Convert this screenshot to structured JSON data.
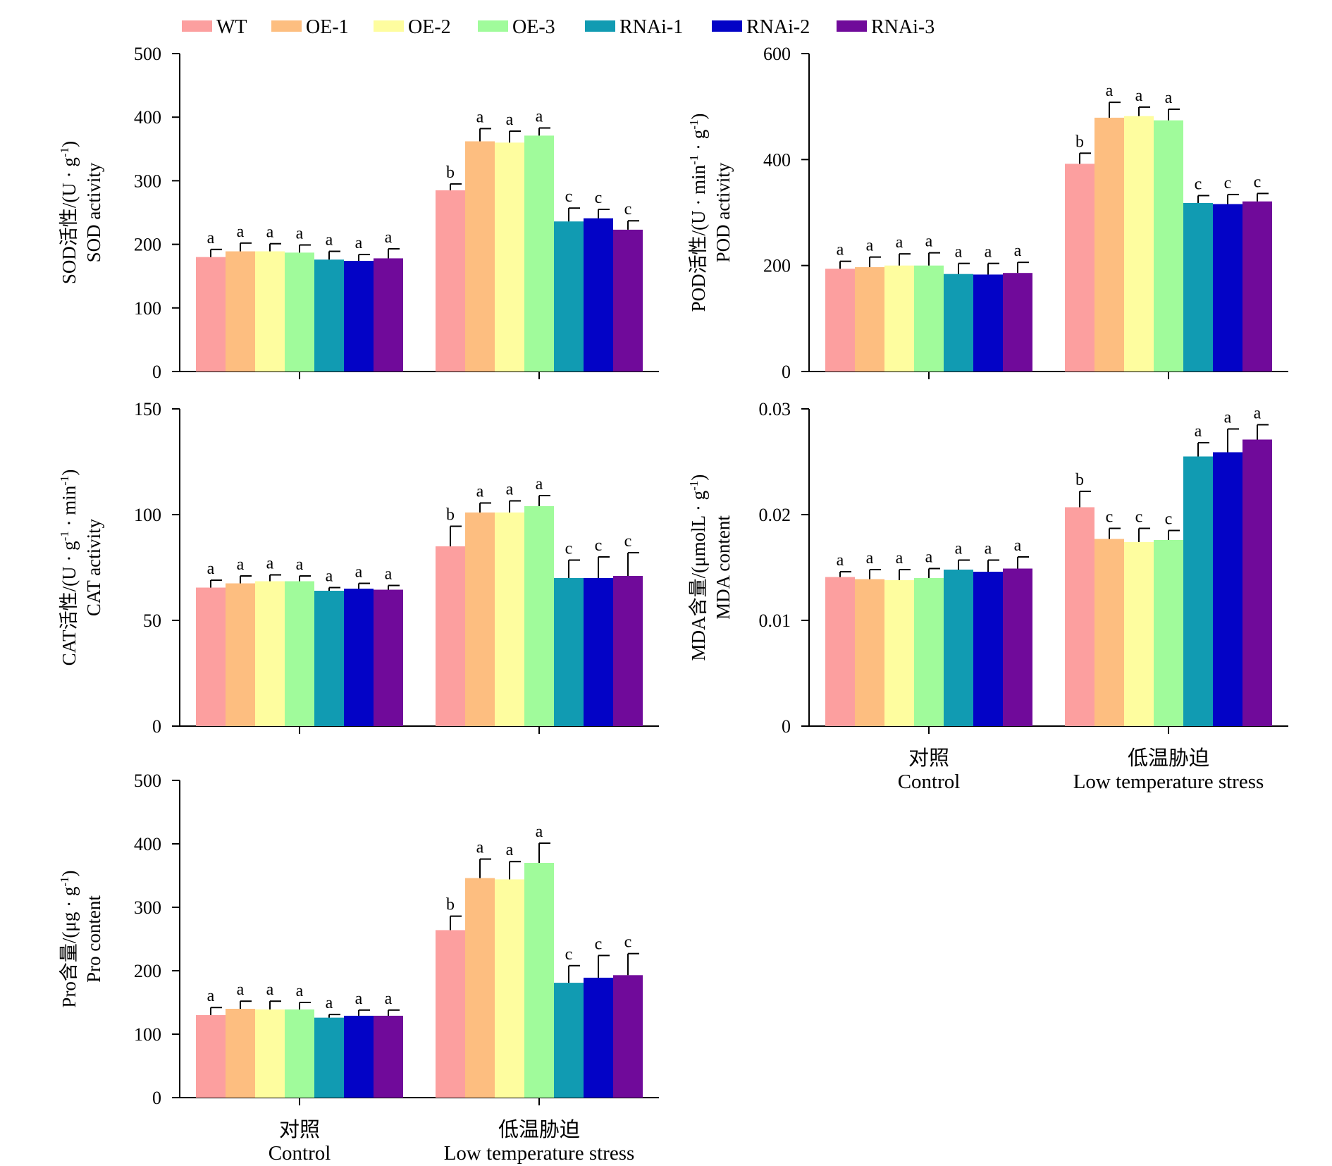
{
  "legend": [
    {
      "name": "WT",
      "color": "#FC9F9F"
    },
    {
      "name": "OE-1",
      "color": "#FDBE80"
    },
    {
      "name": "OE-2",
      "color": "#FEFD9F"
    },
    {
      "name": "OE-3",
      "color": "#A0FB9B"
    },
    {
      "name": "RNAi-1",
      "color": "#119BB2"
    },
    {
      "name": "RNAi-2",
      "color": "#0303C6"
    },
    {
      "name": "RNAi-3",
      "color": "#700A9A"
    }
  ],
  "groups": [
    {
      "zh": "对照",
      "en": "Control"
    },
    {
      "zh": "低温胁迫",
      "en": "Low temperature stress"
    }
  ],
  "chart_data": [
    {
      "id": "sod",
      "type": "bar",
      "ylabel_zh": "SOD活性/(U · g",
      "ylabel_sup": "-1",
      "ylabel_close": ")",
      "ylabel_en": "SOD activity",
      "ylim": [
        0,
        500
      ],
      "yticks": [
        "0",
        "100",
        "200",
        "300",
        "400",
        "500"
      ],
      "categories": [
        "对照 Control",
        "低温胁迫 Low temperature stress"
      ],
      "show_group_labels": false,
      "series": [
        {
          "name": "WT",
          "values": [
            180,
            285
          ],
          "errors": [
            12,
            10
          ],
          "sig": [
            "a",
            "b"
          ]
        },
        {
          "name": "OE-1",
          "values": [
            189,
            362
          ],
          "errors": [
            13,
            20
          ],
          "sig": [
            "a",
            "a"
          ]
        },
        {
          "name": "OE-2",
          "values": [
            189,
            360
          ],
          "errors": [
            12,
            18
          ],
          "sig": [
            "a",
            "a"
          ]
        },
        {
          "name": "OE-3",
          "values": [
            187,
            371
          ],
          "errors": [
            12,
            12
          ],
          "sig": [
            "a",
            "a"
          ]
        },
        {
          "name": "RNAi-1",
          "values": [
            176,
            236
          ],
          "errors": [
            13,
            21
          ],
          "sig": [
            "a",
            "c"
          ]
        },
        {
          "name": "RNAi-2",
          "values": [
            174,
            241
          ],
          "errors": [
            10,
            14
          ],
          "sig": [
            "a",
            "c"
          ]
        },
        {
          "name": "RNAi-3",
          "values": [
            178,
            223
          ],
          "errors": [
            15,
            14
          ],
          "sig": [
            "a",
            "c"
          ]
        }
      ]
    },
    {
      "id": "pod",
      "type": "bar",
      "ylabel_zh": "POD活性/(U · min",
      "ylabel_sup": "-1",
      "ylabel_mid": " · g",
      "ylabel_sup2": "-1",
      "ylabel_close": ")",
      "ylabel_en": "POD activity",
      "ylim": [
        0,
        600
      ],
      "yticks": [
        "0",
        "200",
        "400",
        "600"
      ],
      "categories": [
        "对照 Control",
        "低温胁迫 Low temperature stress"
      ],
      "show_group_labels": false,
      "series": [
        {
          "name": "WT",
          "values": [
            194,
            392
          ],
          "errors": [
            14,
            20
          ],
          "sig": [
            "a",
            "b"
          ]
        },
        {
          "name": "OE-1",
          "values": [
            197,
            479
          ],
          "errors": [
            19,
            29
          ],
          "sig": [
            "a",
            "a"
          ]
        },
        {
          "name": "OE-2",
          "values": [
            200,
            482
          ],
          "errors": [
            22,
            17
          ],
          "sig": [
            "a",
            "a"
          ]
        },
        {
          "name": "OE-3",
          "values": [
            200,
            474
          ],
          "errors": [
            24,
            21
          ],
          "sig": [
            "a",
            "a"
          ]
        },
        {
          "name": "RNAi-1",
          "values": [
            184,
            318
          ],
          "errors": [
            20,
            14
          ],
          "sig": [
            "a",
            "c"
          ]
        },
        {
          "name": "RNAi-2",
          "values": [
            183,
            316
          ],
          "errors": [
            21,
            18
          ],
          "sig": [
            "a",
            "c"
          ]
        },
        {
          "name": "RNAi-3",
          "values": [
            186,
            321
          ],
          "errors": [
            20,
            15
          ],
          "sig": [
            "a",
            "c"
          ]
        }
      ]
    },
    {
      "id": "cat",
      "type": "bar",
      "ylabel_zh": "CAT活性/(U · g",
      "ylabel_sup": "-1",
      "ylabel_mid": " · min",
      "ylabel_sup2": "-1",
      "ylabel_close": ")",
      "ylabel_en": "CAT activity",
      "ylim": [
        0,
        150
      ],
      "yticks": [
        "0",
        "50",
        "100",
        "150"
      ],
      "categories": [
        "对照 Control",
        "低温胁迫 Low temperature stress"
      ],
      "show_group_labels": false,
      "series": [
        {
          "name": "WT",
          "values": [
            65.5,
            85
          ],
          "errors": [
            3.5,
            9.5
          ],
          "sig": [
            "a",
            "b"
          ]
        },
        {
          "name": "OE-1",
          "values": [
            67.5,
            101
          ],
          "errors": [
            3.5,
            4.5
          ],
          "sig": [
            "a",
            "a"
          ]
        },
        {
          "name": "OE-2",
          "values": [
            68.5,
            101
          ],
          "errors": [
            3,
            5.5
          ],
          "sig": [
            "a",
            "a"
          ]
        },
        {
          "name": "OE-3",
          "values": [
            68.5,
            104
          ],
          "errors": [
            2.5,
            5
          ],
          "sig": [
            "a",
            "a"
          ]
        },
        {
          "name": "RNAi-1",
          "values": [
            64,
            70
          ],
          "errors": [
            1.5,
            8.5
          ],
          "sig": [
            "a",
            "c"
          ]
        },
        {
          "name": "RNAi-2",
          "values": [
            65,
            70
          ],
          "errors": [
            2.5,
            10
          ],
          "sig": [
            "a",
            "c"
          ]
        },
        {
          "name": "RNAi-3",
          "values": [
            64.5,
            71
          ],
          "errors": [
            2,
            11
          ],
          "sig": [
            "a",
            "c"
          ]
        }
      ]
    },
    {
      "id": "mda",
      "type": "bar",
      "ylabel_zh": "MDA含量/(μmolL · g",
      "ylabel_sup": "-1",
      "ylabel_close": ")",
      "ylabel_en": "MDA content",
      "ylim": [
        0,
        0.03
      ],
      "yticks": [
        "0",
        "0.01",
        "0.02",
        "0.03"
      ],
      "categories": [
        "对照 Control",
        "低温胁迫 Low temperature stress"
      ],
      "show_group_labels": true,
      "series": [
        {
          "name": "WT",
          "values": [
            0.0141,
            0.0207
          ],
          "errors": [
            0.0005,
            0.0015
          ],
          "sig": [
            "a",
            "b"
          ]
        },
        {
          "name": "OE-1",
          "values": [
            0.0139,
            0.0177
          ],
          "errors": [
            0.0009,
            0.001
          ],
          "sig": [
            "a",
            "c"
          ]
        },
        {
          "name": "OE-2",
          "values": [
            0.0138,
            0.0174
          ],
          "errors": [
            0.001,
            0.0013
          ],
          "sig": [
            "a",
            "c"
          ]
        },
        {
          "name": "OE-3",
          "values": [
            0.014,
            0.0176
          ],
          "errors": [
            0.0009,
            0.0009
          ],
          "sig": [
            "a",
            "c"
          ]
        },
        {
          "name": "RNAi-1",
          "values": [
            0.0148,
            0.0255
          ],
          "errors": [
            0.0009,
            0.0013
          ],
          "sig": [
            "a",
            "a"
          ]
        },
        {
          "name": "RNAi-2",
          "values": [
            0.0146,
            0.0259
          ],
          "errors": [
            0.0011,
            0.0022
          ],
          "sig": [
            "a",
            "a"
          ]
        },
        {
          "name": "RNAi-3",
          "values": [
            0.0149,
            0.0271
          ],
          "errors": [
            0.0011,
            0.0014
          ],
          "sig": [
            "a",
            "a"
          ]
        }
      ]
    },
    {
      "id": "pro",
      "type": "bar",
      "ylabel_zh": "Pro含量/(μg · g",
      "ylabel_sup": "-1",
      "ylabel_close": ")",
      "ylabel_en": "Pro content",
      "ylim": [
        0,
        500
      ],
      "yticks": [
        "0",
        "100",
        "200",
        "300",
        "400",
        "500"
      ],
      "categories": [
        "对照 Control",
        "低温胁迫 Low temperature stress"
      ],
      "show_group_labels": true,
      "series": [
        {
          "name": "WT",
          "values": [
            130,
            264
          ],
          "errors": [
            12,
            22
          ],
          "sig": [
            "a",
            "b"
          ]
        },
        {
          "name": "OE-1",
          "values": [
            140,
            346
          ],
          "errors": [
            12,
            30
          ],
          "sig": [
            "a",
            "a"
          ]
        },
        {
          "name": "OE-2",
          "values": [
            139,
            344
          ],
          "errors": [
            13,
            28
          ],
          "sig": [
            "a",
            "a"
          ]
        },
        {
          "name": "OE-3",
          "values": [
            139,
            370
          ],
          "errors": [
            11,
            31
          ],
          "sig": [
            "a",
            "a"
          ]
        },
        {
          "name": "RNAi-1",
          "values": [
            126,
            181
          ],
          "errors": [
            5,
            27
          ],
          "sig": [
            "a",
            "c"
          ]
        },
        {
          "name": "RNAi-2",
          "values": [
            129,
            189
          ],
          "errors": [
            9,
            35
          ],
          "sig": [
            "a",
            "c"
          ]
        },
        {
          "name": "RNAi-3",
          "values": [
            129,
            193
          ],
          "errors": [
            9,
            34
          ],
          "sig": [
            "a",
            "c"
          ]
        }
      ]
    }
  ]
}
